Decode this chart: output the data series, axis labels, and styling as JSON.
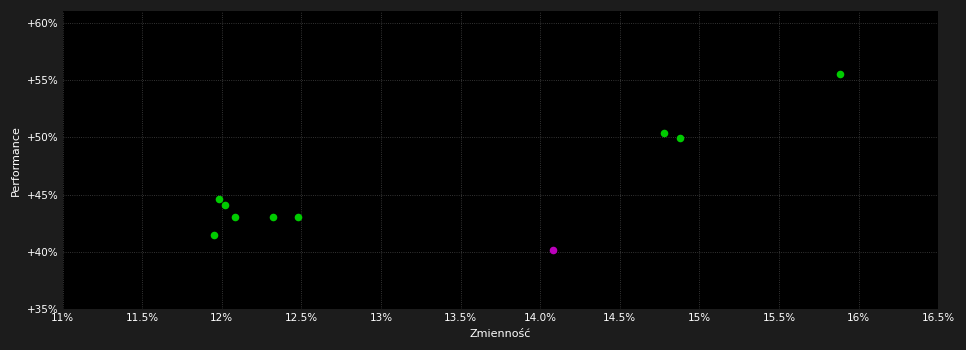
{
  "background_color": "#1c1c1c",
  "plot_bg_color": "#000000",
  "grid_color": "#444444",
  "text_color": "#ffffff",
  "xlabel": "Zmienność",
  "ylabel": "Performance",
  "xlim": [
    0.11,
    0.165
  ],
  "ylim": [
    0.35,
    0.61
  ],
  "xticks": [
    0.11,
    0.115,
    0.12,
    0.125,
    0.13,
    0.135,
    0.14,
    0.145,
    0.15,
    0.155,
    0.16,
    0.165
  ],
  "yticks": [
    0.35,
    0.4,
    0.45,
    0.5,
    0.55,
    0.6
  ],
  "green_points": [
    [
      0.1198,
      0.446
    ],
    [
      0.1202,
      0.441
    ],
    [
      0.1208,
      0.43
    ],
    [
      0.1195,
      0.415
    ],
    [
      0.1232,
      0.43
    ],
    [
      0.1248,
      0.43
    ],
    [
      0.1478,
      0.504
    ],
    [
      0.1488,
      0.499
    ],
    [
      0.1588,
      0.555
    ]
  ],
  "magenta_points": [
    [
      0.1408,
      0.402
    ]
  ],
  "point_size": 30,
  "green_color": "#00cc00",
  "magenta_color": "#bb00bb",
  "fontsize_labels": 8,
  "fontsize_ticks": 7.5
}
